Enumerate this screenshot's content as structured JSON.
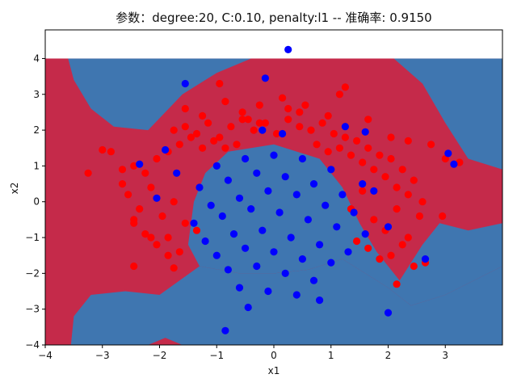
{
  "chart_data": {
    "type": "scatter",
    "title": "参数：degree:20, C:0.10, penalty:l1 -- 准确率: 0.9150",
    "xlabel": "x1",
    "ylabel": "x2",
    "xlim": [
      -4,
      4
    ],
    "ylim": [
      -4,
      4.8
    ],
    "xticks": [
      "−4",
      "−3",
      "−2",
      "−1",
      "0",
      "1",
      "2",
      "3"
    ],
    "yticks": [
      "−4",
      "−3",
      "−2",
      "−1",
      "0",
      "1",
      "2",
      "3",
      "4"
    ],
    "xtick_values": [
      -4,
      -3,
      -2,
      -1,
      0,
      1,
      2,
      3
    ],
    "ytick_values": [
      -4,
      -3,
      -2,
      -1,
      0,
      1,
      2,
      3,
      4
    ],
    "decision_region": {
      "x_range": [
        -4,
        4
      ],
      "y_range": [
        -4,
        4
      ],
      "colors": {
        "outer_class": "#3f76b0",
        "inner_class": "#c52a4a"
      },
      "boundary_estimate": {
        "top_left": [
          [
            -4.0,
            4.0
          ],
          [
            -3.6,
            4.0
          ],
          [
            -3.5,
            3.4
          ],
          [
            -3.2,
            2.6
          ],
          [
            -2.8,
            2.1
          ],
          [
            -2.2,
            2.0
          ],
          [
            -1.6,
            3.0
          ],
          [
            -1.0,
            3.6
          ],
          [
            -0.4,
            4.0
          ],
          [
            -4.0,
            4.0
          ]
        ],
        "top_right": [
          [
            2.1,
            4.0
          ],
          [
            2.6,
            3.3
          ],
          [
            3.0,
            2.2
          ],
          [
            3.4,
            1.2
          ],
          [
            4.0,
            0.9
          ],
          [
            4.0,
            4.0
          ],
          [
            2.1,
            4.0
          ]
        ],
        "right": [
          [
            4.0,
            -0.6
          ],
          [
            3.4,
            -0.8
          ],
          [
            2.9,
            -0.6
          ],
          [
            2.6,
            -1.2
          ],
          [
            2.2,
            -2.2
          ],
          [
            1.8,
            -1.4
          ],
          [
            1.5,
            -0.6
          ],
          [
            1.2,
            0.4
          ],
          [
            0.8,
            1.2
          ],
          [
            0.0,
            1.6
          ],
          [
            -0.8,
            1.4
          ],
          [
            -1.2,
            0.8
          ],
          [
            -1.4,
            0.0
          ],
          [
            -1.5,
            -1.2
          ],
          [
            -1.3,
            -1.8
          ],
          [
            -0.6,
            -2.0
          ],
          [
            0.0,
            -2.0
          ],
          [
            0.6,
            -1.9
          ],
          [
            1.2,
            -1.6
          ],
          [
            2.0,
            -2.4
          ],
          [
            2.4,
            -2.9
          ],
          [
            3.0,
            -2.6
          ],
          [
            4.0,
            -1.8
          ]
        ],
        "lower": [
          [
            -4.0,
            -4.0
          ],
          [
            -3.55,
            -4.0
          ],
          [
            -3.5,
            -3.2
          ],
          [
            -3.2,
            -2.6
          ],
          [
            -2.6,
            -2.5
          ],
          [
            -2.0,
            -2.6
          ],
          [
            -1.3,
            -1.8
          ],
          [
            -0.6,
            -2.0
          ],
          [
            0.0,
            -2.0
          ],
          [
            0.6,
            -1.9
          ],
          [
            1.2,
            -1.6
          ],
          [
            2.0,
            -2.4
          ],
          [
            2.4,
            -2.9
          ],
          [
            3.0,
            -2.6
          ],
          [
            4.0,
            -1.8
          ],
          [
            4.0,
            -4.0
          ],
          [
            -1.6,
            -4.0
          ],
          [
            -1.9,
            -3.8
          ],
          [
            -2.2,
            -4.0
          ]
        ]
      }
    },
    "series": [
      {
        "color": "#ff0000",
        "x": [
          -1.75,
          -1.55,
          -1.35,
          -1.15,
          -0.95,
          -0.75,
          -0.55,
          -0.35,
          -0.15,
          0.05,
          0.25,
          0.45,
          0.65,
          0.85,
          1.05,
          1.25,
          1.45,
          1.65,
          1.85,
          2.05,
          2.25,
          2.45,
          -2.45,
          -2.25,
          -2.05,
          -1.85,
          -1.65,
          -1.45,
          -1.25,
          -1.05,
          -0.85,
          -0.65,
          0.75,
          0.95,
          1.15,
          1.35,
          1.55,
          1.75,
          1.95,
          2.15,
          2.35,
          -2.55,
          -2.35,
          -2.15,
          -1.95,
          -1.75,
          -1.55,
          -1.35,
          1.35,
          1.55,
          1.75,
          1.95,
          2.15,
          2.35,
          2.55,
          -2.45,
          -2.25,
          -2.05,
          -1.85,
          -1.65,
          1.45,
          1.65,
          1.85,
          2.05,
          2.25,
          2.45,
          -3.25,
          -2.85,
          -2.65,
          -2.45,
          -2.15,
          -1.85,
          -1.55,
          -1.25,
          -0.85,
          -0.55,
          -0.25,
          0.15,
          0.55,
          0.95,
          1.25,
          1.65,
          2.05,
          2.35,
          2.75,
          3.0,
          3.25,
          -3.0,
          -2.65,
          2.6,
          2.95,
          -2.45,
          -1.75,
          2.15,
          2.65,
          -0.95,
          1.15,
          -0.45,
          0.45,
          -0.25,
          0.25
        ],
        "y": [
          2.0,
          2.1,
          1.9,
          2.2,
          1.8,
          2.1,
          2.3,
          2.0,
          2.2,
          1.9,
          2.3,
          2.1,
          2.0,
          2.2,
          1.9,
          1.8,
          1.7,
          1.5,
          1.3,
          1.2,
          0.9,
          0.6,
          1.0,
          0.8,
          1.2,
          1.4,
          1.6,
          1.8,
          1.5,
          1.7,
          1.5,
          1.6,
          1.6,
          1.4,
          1.5,
          1.3,
          1.1,
          0.9,
          0.7,
          0.4,
          0.2,
          0.2,
          -0.2,
          0.4,
          -0.4,
          0.0,
          -0.6,
          -0.8,
          -0.2,
          0.3,
          -0.5,
          -0.8,
          -0.2,
          -1.0,
          -0.4,
          -0.6,
          -0.9,
          -1.2,
          -1.0,
          -1.4,
          -1.1,
          -1.3,
          -1.6,
          -1.5,
          -1.2,
          -1.8,
          0.8,
          1.4,
          0.5,
          -0.5,
          -1.0,
          -1.5,
          2.6,
          2.4,
          2.8,
          2.5,
          2.2,
          2.9,
          2.7,
          2.4,
          3.2,
          2.3,
          1.8,
          1.7,
          1.6,
          1.2,
          1.1,
          1.45,
          0.9,
          0.0,
          -0.4,
          -1.8,
          -1.85,
          -2.3,
          -1.7,
          3.3,
          3.0,
          2.3,
          2.5,
          2.7,
          2.6
        ],
        "legend": false
      },
      {
        "color": "#0000ff",
        "x": [
          0.25,
          -0.15,
          -1.55,
          -1.0,
          -0.5,
          0.0,
          0.5,
          1.0,
          1.55,
          -1.3,
          -0.8,
          -0.3,
          0.2,
          0.7,
          1.2,
          -1.1,
          -0.6,
          -0.1,
          0.4,
          0.9,
          1.4,
          -1.4,
          -0.9,
          -0.4,
          0.1,
          0.6,
          1.1,
          1.6,
          -1.2,
          -0.7,
          -0.2,
          0.3,
          0.8,
          1.3,
          -1.0,
          -0.5,
          0.0,
          0.5,
          1.0,
          -0.8,
          -0.3,
          0.2,
          0.7,
          -0.6,
          -0.1,
          0.4,
          -2.35,
          -1.9,
          1.6,
          1.75,
          2.0,
          3.05,
          3.15,
          2.65,
          -0.85,
          -0.45,
          0.8,
          2.0,
          -1.7,
          -2.05,
          1.25,
          -0.2,
          0.15
        ],
        "y": [
          4.25,
          3.45,
          3.3,
          1.0,
          1.2,
          1.3,
          1.2,
          0.9,
          0.5,
          0.4,
          0.6,
          0.8,
          0.7,
          0.5,
          0.2,
          -0.1,
          0.1,
          0.3,
          0.2,
          -0.1,
          -0.3,
          -0.6,
          -0.4,
          -0.2,
          -0.3,
          -0.5,
          -0.7,
          -0.9,
          -1.1,
          -0.9,
          -0.8,
          -1.0,
          -1.2,
          -1.4,
          -1.5,
          -1.3,
          -1.4,
          -1.6,
          -1.7,
          -1.9,
          -1.8,
          -2.0,
          -2.2,
          -2.4,
          -2.5,
          -2.6,
          1.05,
          1.45,
          1.95,
          0.3,
          -0.7,
          1.35,
          1.05,
          -1.6,
          -3.6,
          -2.95,
          -2.75,
          -3.1,
          0.8,
          0.1,
          2.1,
          2.0,
          1.9
        ],
        "legend": false
      }
    ]
  }
}
